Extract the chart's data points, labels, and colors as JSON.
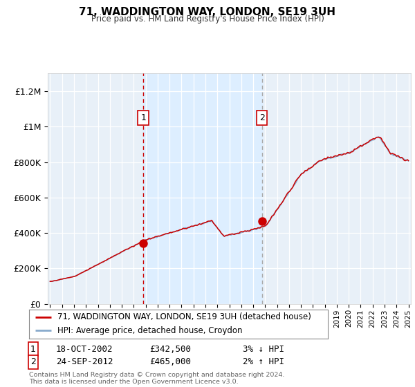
{
  "title": "71, WADDINGTON WAY, LONDON, SE19 3UH",
  "subtitle": "Price paid vs. HM Land Registry's House Price Index (HPI)",
  "legend_line1": "71, WADDINGTON WAY, LONDON, SE19 3UH (detached house)",
  "legend_line2": "HPI: Average price, detached house, Croydon",
  "ylim": [
    0,
    1300000
  ],
  "yticks": [
    0,
    200000,
    400000,
    600000,
    800000,
    1000000,
    1200000
  ],
  "ytick_labels": [
    "£0",
    "£200K",
    "£400K",
    "£600K",
    "£800K",
    "£1M",
    "£1.2M"
  ],
  "sale1_date": 2002.8,
  "sale1_price": 342500,
  "sale2_date": 2012.73,
  "sale2_price": 465000,
  "vline1_x": 2002.8,
  "vline2_x": 2012.73,
  "shade_color": "#ddeeff",
  "line_color_red": "#cc0000",
  "line_color_blue": "#88aacc",
  "plot_bg_color": "#e8f0f8",
  "footer": "Contains HM Land Registry data © Crown copyright and database right 2024.\nThis data is licensed under the Open Government Licence v3.0.",
  "xmin": 1995,
  "xmax": 2025
}
